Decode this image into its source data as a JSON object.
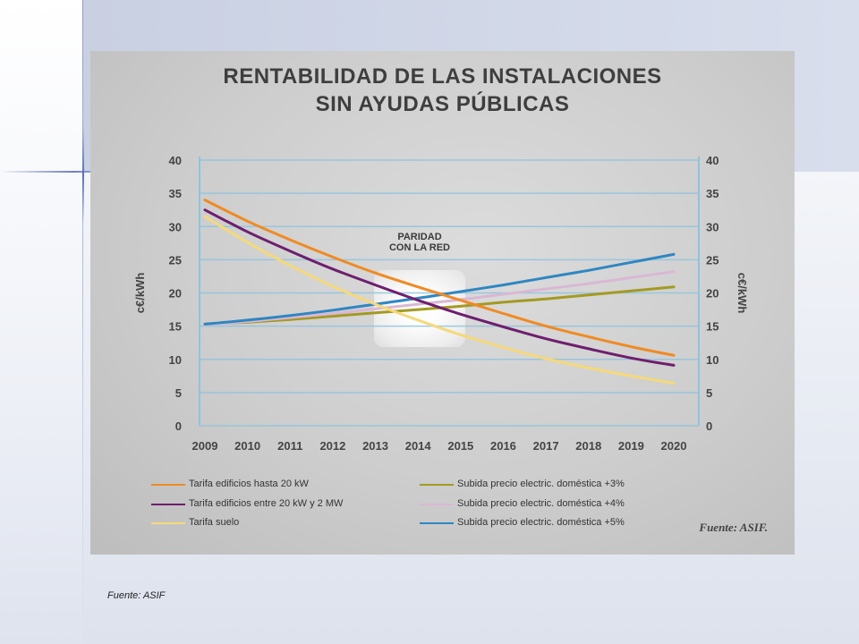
{
  "footer": {
    "source": "Fuente: ASIF"
  },
  "chart_data": {
    "type": "line",
    "title_lines": [
      "RENTABILIDAD DE LAS INSTALACIONES",
      "SIN AYUDAS PÚBLICAS"
    ],
    "ylabel": "c€/kWh",
    "ylabel_right": "c€/kWh",
    "ylim": [
      0,
      40
    ],
    "yticks": [
      0,
      5,
      10,
      15,
      20,
      25,
      30,
      35,
      40
    ],
    "x": [
      2009,
      2010,
      2011,
      2012,
      2013,
      2014,
      2015,
      2016,
      2017,
      2018,
      2019,
      2020
    ],
    "grid": true,
    "annotation": [
      "PARIDAD",
      "CON LA RED"
    ],
    "source_note": "Fuente: ASIF.",
    "series": [
      {
        "name": "Tarifa edificios hasta 20 kW",
        "color": "#f08a24",
        "values": [
          34.0,
          30.8,
          28.0,
          25.4,
          23.0,
          20.9,
          18.9,
          16.9,
          15.0,
          13.4,
          11.9,
          10.6
        ]
      },
      {
        "name": "Tarifa edificios entre 20 kW y 2 MW",
        "color": "#6e1e6e",
        "values": [
          32.5,
          29.2,
          26.3,
          23.6,
          21.2,
          18.9,
          16.8,
          14.9,
          13.1,
          11.6,
          10.2,
          9.1
        ]
      },
      {
        "name": "Tarifa suelo",
        "color": "#f5d97a",
        "values": [
          31.5,
          27.6,
          24.1,
          21.0,
          18.3,
          15.9,
          13.7,
          11.8,
          10.1,
          8.7,
          7.5,
          6.4
        ]
      },
      {
        "name": "Subida precio electric. doméstica +3%",
        "color": "#a39a22",
        "values": [
          15.3,
          15.6,
          16.0,
          16.5,
          17.0,
          17.5,
          18.0,
          18.6,
          19.1,
          19.7,
          20.3,
          20.9
        ]
      },
      {
        "name": "Subida precio electric. doméstica +4%",
        "color": "#d9b8d4",
        "values": [
          15.2,
          15.7,
          16.3,
          16.9,
          17.6,
          18.3,
          19.0,
          19.8,
          20.6,
          21.4,
          22.3,
          23.2
        ]
      },
      {
        "name": "Subida precio electric. doméstica +5%",
        "color": "#2f86c2",
        "values": [
          15.3,
          15.9,
          16.6,
          17.4,
          18.3,
          19.2,
          20.2,
          21.2,
          22.3,
          23.4,
          24.6,
          25.8
        ]
      }
    ],
    "legend_order": [
      0,
      3,
      1,
      4,
      2,
      5
    ]
  }
}
